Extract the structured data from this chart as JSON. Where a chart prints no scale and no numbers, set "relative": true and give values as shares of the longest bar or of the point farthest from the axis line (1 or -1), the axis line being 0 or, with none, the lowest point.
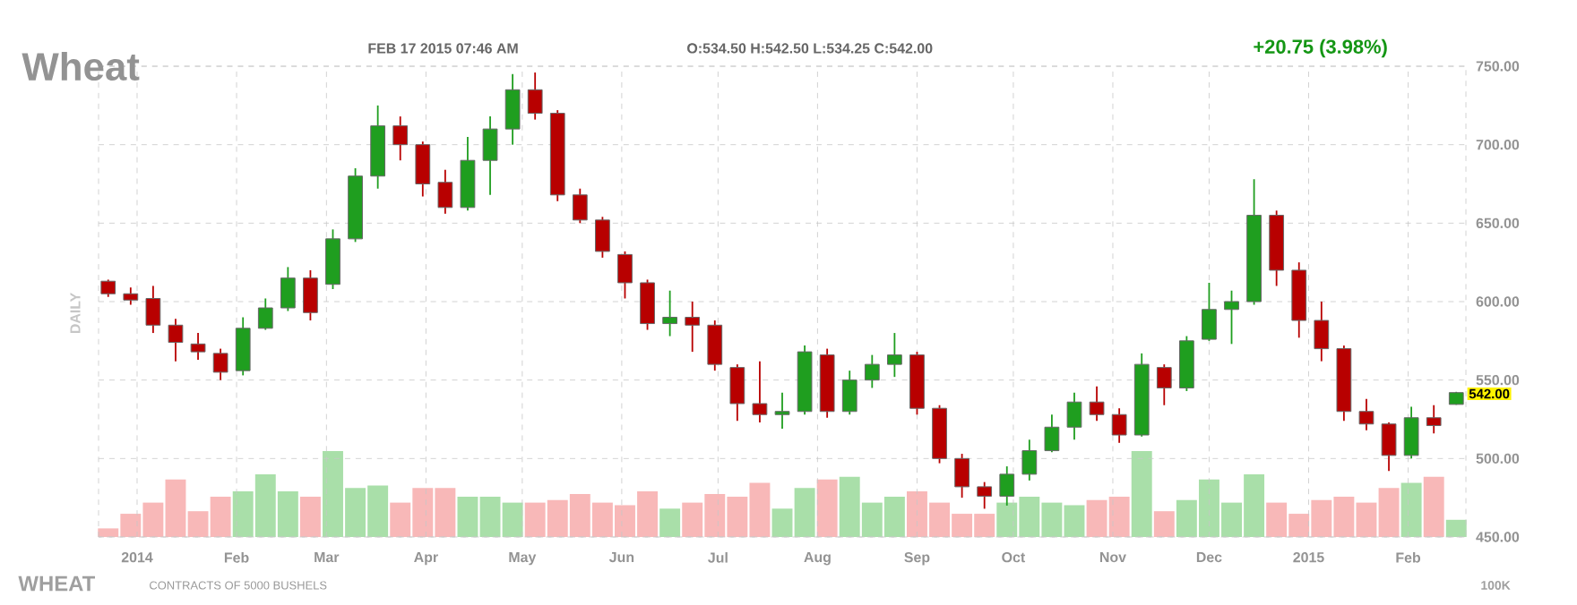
{
  "chart_data": [
    {
      "type": "candlestick",
      "title": "Wheat",
      "ylabel": "DAILY",
      "annotations": [
        "FEB 17 2015 07:46 AM",
        "O:534.50 H:542.50 L:534.25 C:542.00",
        "+20.75 (3.98%)",
        {
          "text": "542.00",
          "x": "2015-02-16",
          "y": 542
        }
      ],
      "x": [
        "2013-12-23",
        "2013-12-30",
        "2014-01-06",
        "2014-01-13",
        "2014-01-20",
        "2014-01-27",
        "2014-02-03",
        "2014-02-10",
        "2014-02-17",
        "2014-02-24",
        "2014-03-03",
        "2014-03-10",
        "2014-03-17",
        "2014-03-24",
        "2014-03-31",
        "2014-04-07",
        "2014-04-14",
        "2014-04-21",
        "2014-04-28",
        "2014-05-05",
        "2014-05-12",
        "2014-05-19",
        "2014-05-26",
        "2014-06-02",
        "2014-06-09",
        "2014-06-16",
        "2014-06-23",
        "2014-06-30",
        "2014-07-07",
        "2014-07-14",
        "2014-07-21",
        "2014-07-28",
        "2014-08-04",
        "2014-08-11",
        "2014-08-18",
        "2014-08-25",
        "2014-09-01",
        "2014-09-08",
        "2014-09-15",
        "2014-09-22",
        "2014-09-29",
        "2014-10-06",
        "2014-10-13",
        "2014-10-20",
        "2014-10-27",
        "2014-11-03",
        "2014-11-10",
        "2014-11-17",
        "2014-11-24",
        "2014-12-01",
        "2014-12-08",
        "2014-12-15",
        "2014-12-22",
        "2014-12-29",
        "2015-01-05",
        "2015-01-12",
        "2015-01-19",
        "2015-01-26",
        "2015-02-02",
        "2015-02-09",
        "2015-02-16"
      ],
      "ohlc": [
        [
          613,
          614,
          603,
          605
        ],
        [
          605,
          609,
          598,
          601
        ],
        [
          602,
          610,
          580,
          585
        ],
        [
          585,
          589,
          562,
          574
        ],
        [
          573,
          580,
          563,
          568
        ],
        [
          567,
          570,
          550,
          555
        ],
        [
          556,
          590,
          553,
          583
        ],
        [
          583,
          602,
          582,
          596
        ],
        [
          596,
          622,
          594,
          615
        ],
        [
          615,
          620,
          588,
          593
        ],
        [
          611,
          646,
          608,
          640
        ],
        [
          640,
          685,
          638,
          680
        ],
        [
          680,
          725,
          672,
          712
        ],
        [
          712,
          718,
          690,
          700
        ],
        [
          700,
          702,
          667,
          675
        ],
        [
          676,
          684,
          656,
          660
        ],
        [
          660,
          705,
          658,
          690
        ],
        [
          690,
          718,
          668,
          710
        ],
        [
          710,
          745,
          700,
          735
        ],
        [
          735,
          746,
          716,
          720
        ],
        [
          720,
          722,
          664,
          668
        ],
        [
          668,
          672,
          650,
          652
        ],
        [
          652,
          654,
          628,
          632
        ],
        [
          630,
          632,
          602,
          612
        ],
        [
          612,
          614,
          582,
          586
        ],
        [
          586,
          607,
          578,
          590
        ],
        [
          590,
          600,
          568,
          585
        ],
        [
          585,
          588,
          556,
          560
        ],
        [
          558,
          560,
          524,
          535
        ],
        [
          535,
          562,
          523,
          528
        ],
        [
          528,
          542,
          519,
          530
        ],
        [
          530,
          572,
          528,
          568
        ],
        [
          566,
          570,
          526,
          530
        ],
        [
          530,
          556,
          528,
          550
        ],
        [
          550,
          566,
          545,
          560
        ],
        [
          560,
          580,
          552,
          566
        ],
        [
          566,
          568,
          528,
          532
        ],
        [
          532,
          534,
          497,
          500
        ],
        [
          500,
          503,
          475,
          482
        ],
        [
          482,
          485,
          468,
          476
        ],
        [
          476,
          495,
          470,
          490
        ],
        [
          490,
          512,
          486,
          505
        ],
        [
          505,
          528,
          504,
          520
        ],
        [
          520,
          542,
          512,
          536
        ],
        [
          536,
          546,
          524,
          528
        ],
        [
          528,
          532,
          510,
          515
        ],
        [
          515,
          567,
          514,
          560
        ],
        [
          558,
          560,
          534,
          545
        ],
        [
          545,
          578,
          543,
          575
        ],
        [
          576,
          612,
          575,
          595
        ],
        [
          595,
          607,
          573,
          600
        ],
        [
          600,
          678,
          598,
          655
        ],
        [
          655,
          658,
          610,
          620
        ],
        [
          620,
          625,
          577,
          588
        ],
        [
          588,
          600,
          562,
          570
        ],
        [
          570,
          572,
          524,
          530
        ],
        [
          530,
          538,
          518,
          522
        ],
        [
          522,
          523,
          492,
          502
        ],
        [
          502,
          533,
          500,
          526
        ],
        [
          526,
          534,
          516,
          521
        ],
        [
          534.5,
          542.5,
          534.25,
          542
        ]
      ],
      "colors": [
        "#b80000",
        "#b80000",
        "#b80000",
        "#b80000",
        "#b80000",
        "#b80000",
        "#1f9e1f",
        "#1f9e1f",
        "#1f9e1f",
        "#b80000",
        "#1f9e1f",
        "#1f9e1f",
        "#1f9e1f",
        "#b80000",
        "#b80000",
        "#b80000",
        "#1f9e1f",
        "#1f9e1f",
        "#1f9e1f",
        "#b80000",
        "#b80000",
        "#b80000",
        "#b80000",
        "#b80000",
        "#b80000",
        "#1f9e1f",
        "#b80000",
        "#b80000",
        "#b80000",
        "#b80000",
        "#1f9e1f",
        "#1f9e1f",
        "#b80000",
        "#1f9e1f",
        "#1f9e1f",
        "#1f9e1f",
        "#b80000",
        "#b80000",
        "#b80000",
        "#b80000",
        "#1f9e1f",
        "#1f9e1f",
        "#1f9e1f",
        "#1f9e1f",
        "#b80000",
        "#b80000",
        "#1f9e1f",
        "#b80000",
        "#1f9e1f",
        "#1f9e1f",
        "#1f9e1f",
        "#1f9e1f",
        "#b80000",
        "#b80000",
        "#b80000",
        "#b80000",
        "#b80000",
        "#b80000",
        "#1f9e1f",
        "#b80000",
        "#1f9e1f"
      ],
      "xlim": [
        "2013-12-20",
        "2015-02-19"
      ],
      "xticks": [
        {
          "value": "2014-01-01",
          "label": "2014"
        },
        {
          "value": "2014-02-01",
          "label": "Feb"
        },
        {
          "value": "2014-03-01",
          "label": "Mar"
        },
        {
          "value": "2014-04-01",
          "label": "Apr"
        },
        {
          "value": "2014-05-01",
          "label": "May"
        },
        {
          "value": "2014-06-01",
          "label": "Jun"
        },
        {
          "value": "2014-07-01",
          "label": "Jul"
        },
        {
          "value": "2014-08-01",
          "label": "Aug"
        },
        {
          "value": "2014-09-01",
          "label": "Sep"
        },
        {
          "value": "2014-10-01",
          "label": "Oct"
        },
        {
          "value": "2014-11-01",
          "label": "Nov"
        },
        {
          "value": "2014-12-01",
          "label": "Dec"
        },
        {
          "value": "2015-01-01",
          "label": "2015"
        },
        {
          "value": "2015-02-01",
          "label": "Feb"
        }
      ],
      "ylim": [
        450,
        750
      ],
      "yticks": [
        {
          "value": 450,
          "label": "450.00"
        },
        {
          "value": 500,
          "label": "500.00"
        },
        {
          "value": 550,
          "label": "550.00"
        },
        {
          "value": 600,
          "label": "600.00"
        },
        {
          "value": 650,
          "label": "650.00"
        },
        {
          "value": 700,
          "label": "700.00"
        },
        {
          "value": 750,
          "label": "750.00"
        }
      ],
      "grid": true
    },
    {
      "type": "bar",
      "relative": true,
      "annotations": [
        "WHEAT",
        "CONTRACTS OF 5000 BUSHELS",
        "100K"
      ],
      "x": [
        "2013-12-23",
        "2013-12-30",
        "2014-01-06",
        "2014-01-13",
        "2014-01-20",
        "2014-01-27",
        "2014-02-03",
        "2014-02-10",
        "2014-02-17",
        "2014-02-24",
        "2014-03-03",
        "2014-03-10",
        "2014-03-17",
        "2014-03-24",
        "2014-03-31",
        "2014-04-07",
        "2014-04-14",
        "2014-04-21",
        "2014-04-28",
        "2014-05-05",
        "2014-05-12",
        "2014-05-19",
        "2014-05-26",
        "2014-06-02",
        "2014-06-09",
        "2014-06-16",
        "2014-06-23",
        "2014-06-30",
        "2014-07-07",
        "2014-07-14",
        "2014-07-21",
        "2014-07-28",
        "2014-08-04",
        "2014-08-11",
        "2014-08-18",
        "2014-08-25",
        "2014-09-01",
        "2014-09-08",
        "2014-09-15",
        "2014-09-22",
        "2014-09-29",
        "2014-10-06",
        "2014-10-13",
        "2014-10-20",
        "2014-10-27",
        "2014-11-03",
        "2014-11-10",
        "2014-11-17",
        "2014-11-24",
        "2014-12-01",
        "2014-12-08",
        "2014-12-15",
        "2014-12-22",
        "2014-12-29",
        "2015-01-05",
        "2015-01-12",
        "2015-01-19",
        "2015-01-26",
        "2015-02-02",
        "2015-02-09",
        "2015-02-16"
      ],
      "values": [
        0.1,
        0.27,
        0.4,
        0.67,
        0.3,
        0.47,
        0.53,
        0.73,
        0.53,
        0.47,
        1.0,
        0.57,
        0.6,
        0.4,
        0.57,
        0.57,
        0.47,
        0.47,
        0.4,
        0.4,
        0.43,
        0.5,
        0.4,
        0.37,
        0.53,
        0.33,
        0.4,
        0.5,
        0.47,
        0.63,
        0.33,
        0.57,
        0.67,
        0.7,
        0.4,
        0.47,
        0.53,
        0.4,
        0.27,
        0.27,
        0.4,
        0.47,
        0.4,
        0.37,
        0.43,
        0.47,
        1.0,
        0.3,
        0.43,
        0.67,
        0.4,
        0.73,
        0.4,
        0.27,
        0.43,
        0.47,
        0.4,
        0.57,
        0.63,
        0.7,
        0.2
      ],
      "colors": [
        "#f8b8b8",
        "#f8b8b8",
        "#f8b8b8",
        "#f8b8b8",
        "#f8b8b8",
        "#f8b8b8",
        "#a9dfa9",
        "#a9dfa9",
        "#a9dfa9",
        "#f8b8b8",
        "#a9dfa9",
        "#a9dfa9",
        "#a9dfa9",
        "#f8b8b8",
        "#f8b8b8",
        "#f8b8b8",
        "#a9dfa9",
        "#a9dfa9",
        "#a9dfa9",
        "#f8b8b8",
        "#f8b8b8",
        "#f8b8b8",
        "#f8b8b8",
        "#f8b8b8",
        "#f8b8b8",
        "#a9dfa9",
        "#f8b8b8",
        "#f8b8b8",
        "#f8b8b8",
        "#f8b8b8",
        "#a9dfa9",
        "#a9dfa9",
        "#f8b8b8",
        "#a9dfa9",
        "#a9dfa9",
        "#a9dfa9",
        "#f8b8b8",
        "#f8b8b8",
        "#f8b8b8",
        "#f8b8b8",
        "#a9dfa9",
        "#a9dfa9",
        "#a9dfa9",
        "#a9dfa9",
        "#f8b8b8",
        "#f8b8b8",
        "#a9dfa9",
        "#f8b8b8",
        "#a9dfa9",
        "#a9dfa9",
        "#a9dfa9",
        "#a9dfa9",
        "#f8b8b8",
        "#f8b8b8",
        "#f8b8b8",
        "#f8b8b8",
        "#f8b8b8",
        "#f8b8b8",
        "#a9dfa9",
        "#f8b8b8",
        "#a9dfa9"
      ],
      "xlim": [
        "2013-12-20",
        "2015-02-19"
      ]
    }
  ]
}
